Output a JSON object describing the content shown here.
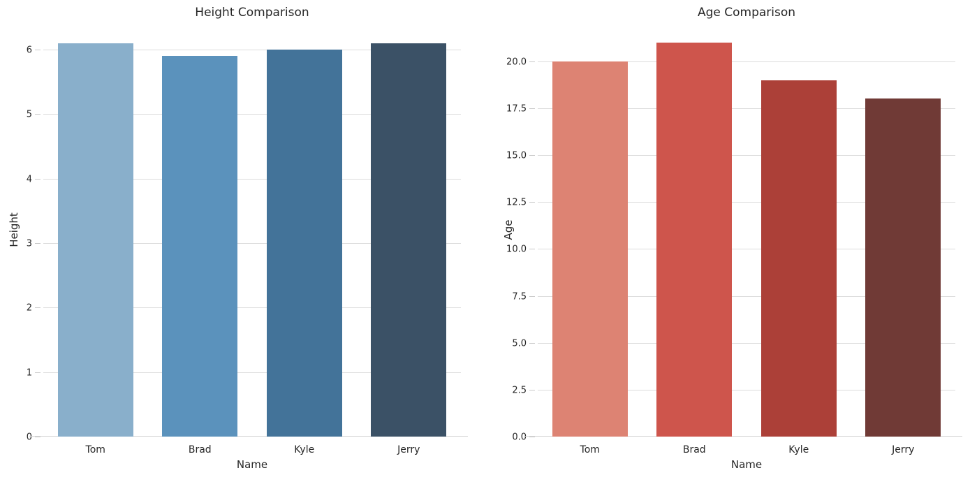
{
  "page": {
    "background": "#ffffff",
    "text_color": "#262626",
    "grid_color": "#dcdcdc"
  },
  "chart_data": [
    {
      "type": "bar",
      "title": "Height Comparison",
      "xlabel": "Name",
      "ylabel": "Height",
      "categories": [
        "Tom",
        "Brad",
        "Kyle",
        "Jerry"
      ],
      "values": [
        6.1,
        5.9,
        6.0,
        6.1
      ],
      "bar_colors": [
        "#89AFCB",
        "#5B92BC",
        "#437399",
        "#3B5166"
      ],
      "yticks": [
        0,
        1,
        2,
        3,
        4,
        5,
        6
      ],
      "ytick_labels": [
        "0",
        "1",
        "2",
        "3",
        "4",
        "5",
        "6"
      ],
      "ylim": [
        0,
        6.4
      ],
      "grid": true,
      "legend": false
    },
    {
      "type": "bar",
      "title": "Age Comparison",
      "xlabel": "Name",
      "ylabel": "Age",
      "categories": [
        "Tom",
        "Brad",
        "Kyle",
        "Jerry"
      ],
      "values": [
        20,
        21,
        19,
        18
      ],
      "bar_colors": [
        "#DD8373",
        "#CE554C",
        "#AC4038",
        "#703A36"
      ],
      "yticks": [
        0,
        2.5,
        5,
        7.5,
        10,
        12.5,
        15,
        17.5,
        20
      ],
      "ytick_labels": [
        "0.0",
        "2.5",
        "5.0",
        "7.5",
        "10.0",
        "12.5",
        "15.0",
        "17.5",
        "20.0"
      ],
      "ylim": [
        0,
        22
      ],
      "grid": true,
      "legend": false
    }
  ]
}
